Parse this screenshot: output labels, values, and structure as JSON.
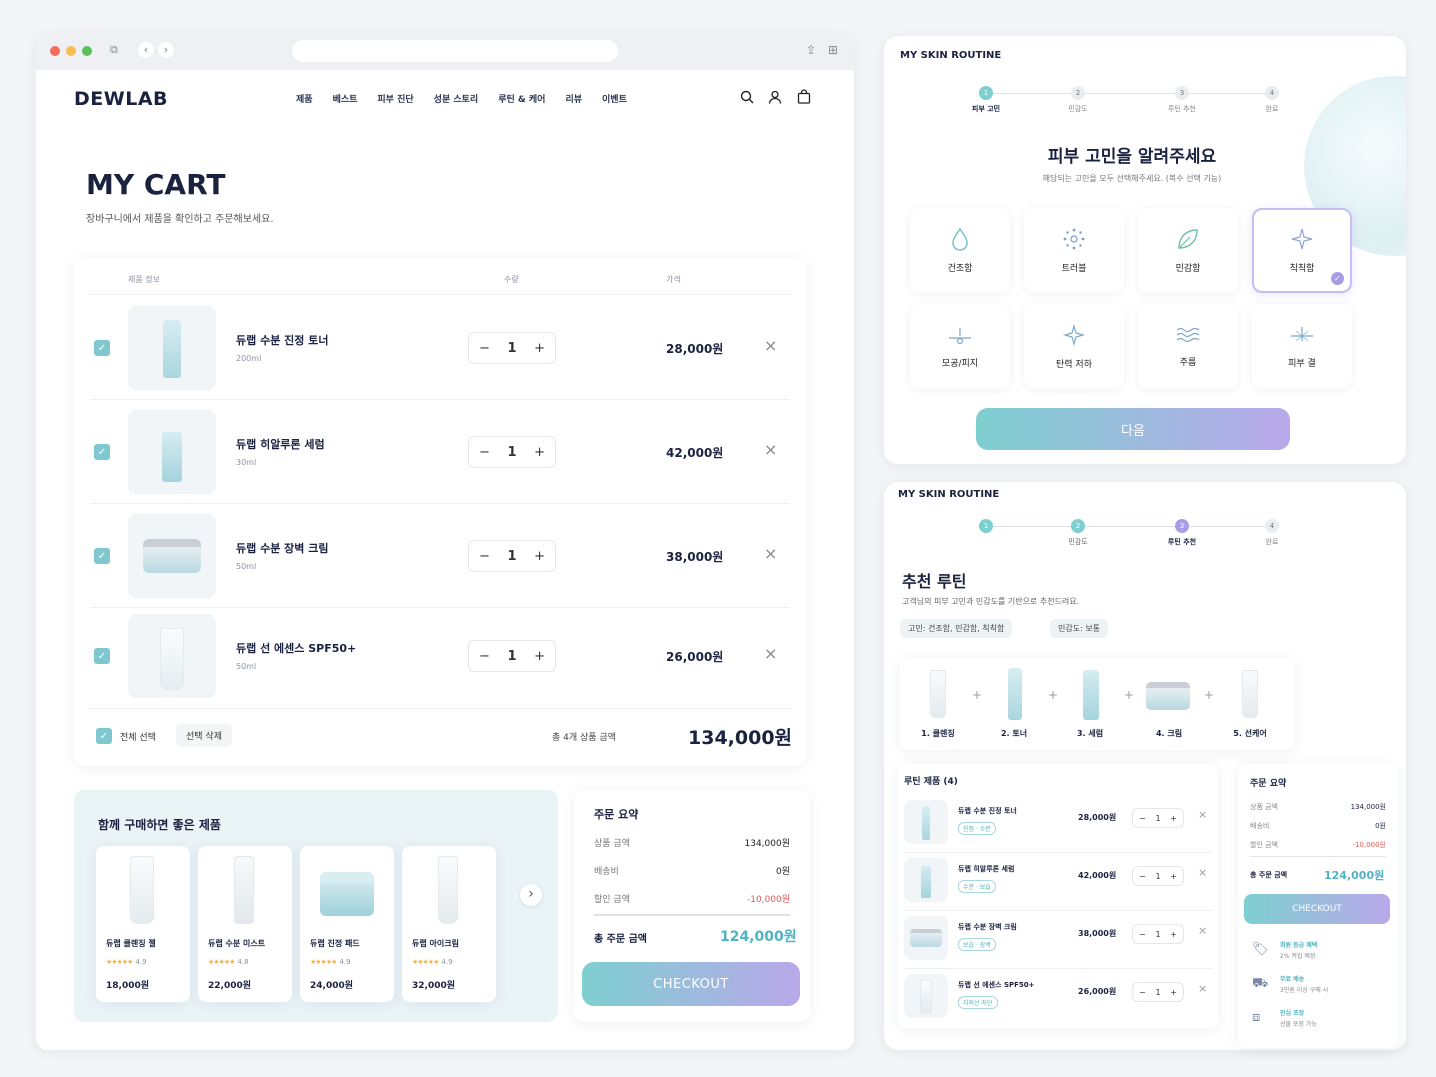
{
  "browser": {
    "address": ""
  },
  "brand": "DEWLAB",
  "nav": [
    "제품",
    "베스트",
    "피부 진단",
    "성분 스토리",
    "루틴 & 케어",
    "리뷰",
    "이벤트"
  ],
  "cart": {
    "title": "MY CART",
    "subtitle": "장바구니에서 제품을 확인하고 주문해보세요.",
    "headers": {
      "product": "제품 정보",
      "qty": "수량",
      "price": "가격"
    },
    "items": [
      {
        "name": "듀랩 수분 진정 토너",
        "size": "200ml",
        "qty": "1",
        "price": "28,000원"
      },
      {
        "name": "듀랩 히알루론 세럼",
        "size": "30ml",
        "qty": "1",
        "price": "42,000원"
      },
      {
        "name": "듀랩 수분 장벽 크림",
        "size": "50ml",
        "qty": "1",
        "price": "38,000원"
      },
      {
        "name": "듀랩 선 에센스 SPF50+",
        "size": "50ml",
        "qty": "1",
        "price": "26,000원"
      }
    ],
    "select_all": "전체 선택",
    "delete_selected": "선택 삭제",
    "total_label": "총 4개 상품 금액",
    "total_value": "134,000원",
    "minus": "−",
    "plus": "+",
    "remove": "×"
  },
  "recommend": {
    "title": "함께 구매하면 좋은 제품",
    "items": [
      {
        "name": "듀랩 클렌징 젤",
        "rating": "4.9",
        "stars": "★★★★★",
        "price": "18,000원"
      },
      {
        "name": "듀랩 수분 미스트",
        "rating": "4.8",
        "stars": "★★★★★",
        "price": "22,000원"
      },
      {
        "name": "듀랩 진정 패드",
        "rating": "4.9",
        "stars": "★★★★★",
        "price": "24,000원"
      },
      {
        "name": "듀랩 아이크림",
        "rating": "4.9",
        "stars": "★★★★★",
        "price": "32,000원"
      }
    ],
    "next": "›"
  },
  "summary": {
    "title": "주문 요약",
    "rows": [
      {
        "label": "상품 금액",
        "value": "134,000원"
      },
      {
        "label": "배송비",
        "value": "0원"
      },
      {
        "label": "할인 금액",
        "value": "-10,000원"
      }
    ],
    "total_label": "총 주문 금액",
    "total_value": "124,000원",
    "checkout": "CHECKOUT"
  },
  "routine1": {
    "title": "MY SKIN ROUTINE",
    "steps": [
      {
        "num": "1",
        "label": "피부 고민"
      },
      {
        "num": "2",
        "label": "민감도"
      },
      {
        "num": "3",
        "label": "루틴 추천"
      },
      {
        "num": "4",
        "label": "완료"
      }
    ],
    "heading": "피부 고민을 알려주세요",
    "sub": "해당되는 고민을 모두 선택해주세요. (복수 선택 기능)",
    "concerns": [
      "건조함",
      "트러블",
      "민감함",
      "칙칙함",
      "모공/피지",
      "탄력 저하",
      "주름",
      "피부 결"
    ],
    "next": "다음"
  },
  "routine2": {
    "title": "MY SKIN ROUTINE",
    "steps": [
      {
        "num": "1",
        "label": ""
      },
      {
        "num": "2",
        "label": "민감도"
      },
      {
        "num": "3",
        "label": "루틴 추천"
      },
      {
        "num": "4",
        "label": "완료"
      }
    ],
    "heading": "추천 루틴",
    "sub": "고객님의 피부 고민과 민감도를 기반으로 추천드려요.",
    "tags": [
      "고민: 건조함, 민감함, 칙칙함",
      "민감도: 보통"
    ],
    "routine_steps": [
      "1. 클렌징",
      "2. 토너",
      "3. 세럼",
      "4. 크림",
      "5. 선케어"
    ],
    "products_title": "루틴 제품 (4)",
    "products": [
      {
        "name": "듀랩 수분 진정 토너",
        "tag": "진정 · 수분",
        "price": "28,000원",
        "qty": "1"
      },
      {
        "name": "듀랩 히알루론 세럼",
        "tag": "수분 · 보습",
        "price": "42,000원",
        "qty": "1"
      },
      {
        "name": "듀랩 수분 장벽 크림",
        "tag": "보습 · 장벽",
        "price": "38,000원",
        "qty": "1"
      },
      {
        "name": "듀랩 선 에센스 SPF50+",
        "tag": "자외선 차단",
        "price": "26,000원",
        "qty": "1"
      }
    ],
    "summary": {
      "title": "주문 요약",
      "rows": [
        {
          "label": "상품 금액",
          "value": "134,000원"
        },
        {
          "label": "배송비",
          "value": "0원"
        },
        {
          "label": "할인 금액",
          "value": "-10,000원"
        }
      ],
      "total_label": "총 주문 금액",
      "total_value": "124,000원",
      "checkout": "CHECKOUT"
    },
    "benefits": [
      {
        "title": "회원 등급 혜택",
        "desc": "2% 적립 예정"
      },
      {
        "title": "무료 배송",
        "desc": "3만원 이상 구매 시"
      },
      {
        "title": "안심 포장",
        "desc": "선물 포장 가능"
      }
    ]
  },
  "colors": {
    "accent": "#7ecfd0",
    "accent2": "#b9a8ea",
    "navy": "#1a2240",
    "discount": "#e05a5a",
    "total": "#4fb3c0"
  }
}
